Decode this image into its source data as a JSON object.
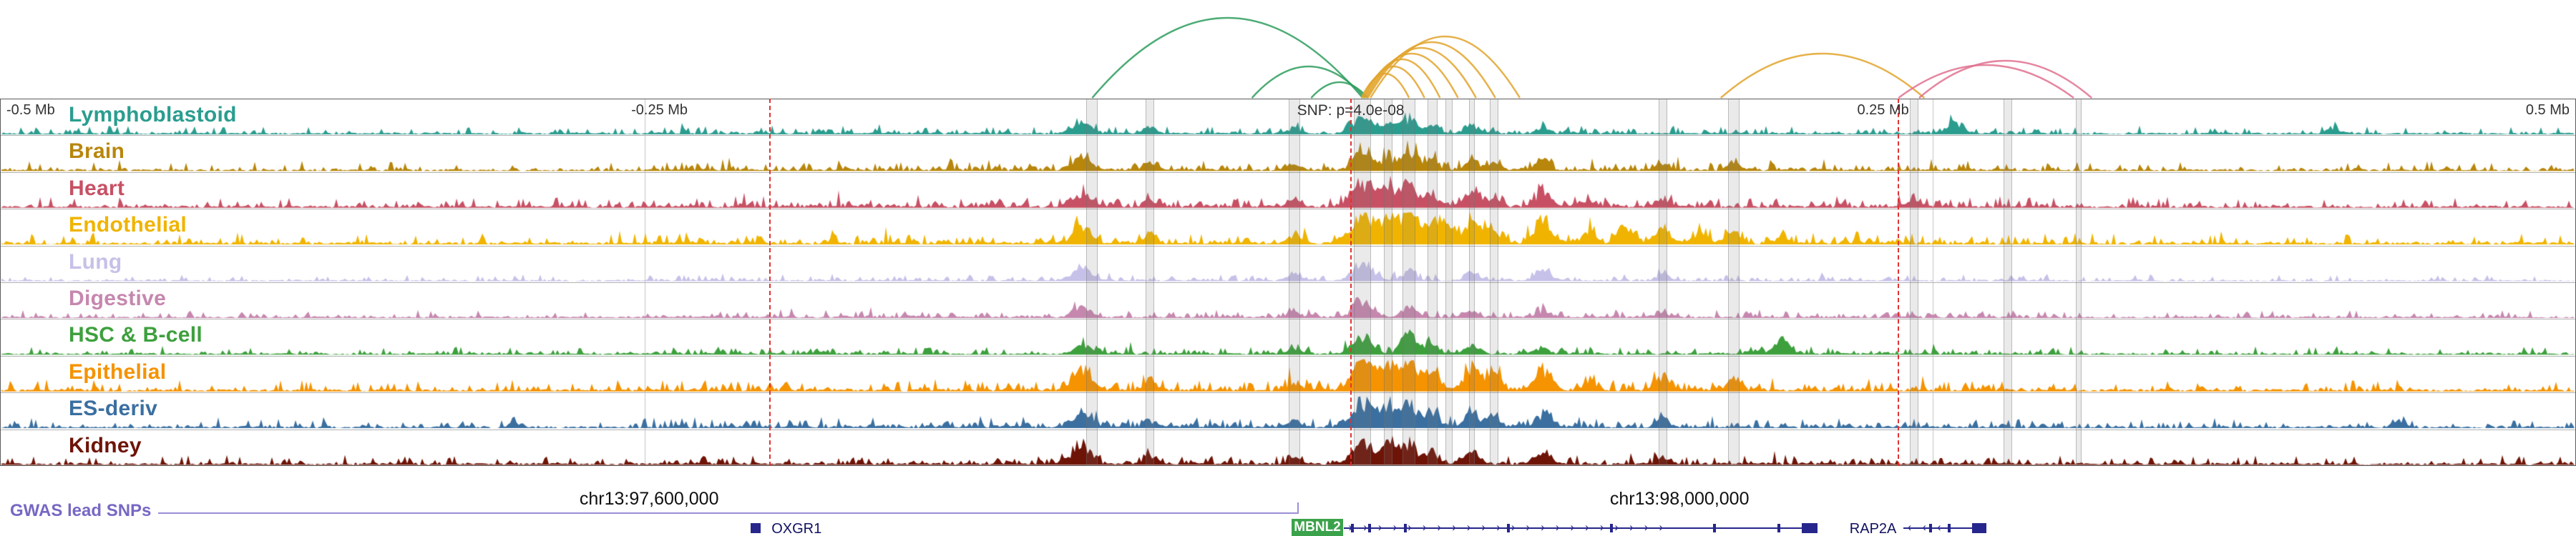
{
  "chart_data": {
    "type": "genome-browser-tracks",
    "description": "Tissue chromatin signal tracks with chromatin interaction arcs, GWAS lead SNP markers and gene annotations at the MBNL2 locus on chr13",
    "axis": {
      "ticks": [
        {
          "label": "-0.5 Mb",
          "pos": 0.0025,
          "anchor": "start"
        },
        {
          "label": "-0.25 Mb",
          "pos": 0.256,
          "anchor": "middle"
        },
        {
          "label": "0.25 Mb",
          "pos": 0.731,
          "anchor": "middle"
        },
        {
          "label": "0.5 Mb",
          "pos": 0.9975,
          "anchor": "end"
        }
      ],
      "gridlines": [
        0.25,
        0.75
      ],
      "snp": {
        "label": "SNP: p=4.0e-08",
        "pos": 0.5035
      }
    },
    "tracks": [
      {
        "label": "Lymphoblastoid",
        "color": "#2a9d8f",
        "noise": 1.0,
        "peaks": [
          [
            0.42,
            16,
            13
          ],
          [
            0.4465,
            8,
            9
          ],
          [
            0.5025,
            7,
            9
          ],
          [
            0.529,
            22,
            13
          ],
          [
            0.539,
            16,
            10
          ],
          [
            0.547,
            20,
            11
          ],
          [
            0.556,
            11,
            9
          ],
          [
            0.5715,
            12,
            10
          ],
          [
            0.599,
            8,
            9
          ],
          [
            0.759,
            15,
            11
          ],
          [
            0.906,
            7,
            9
          ]
        ]
      },
      {
        "label": "Brain",
        "color": "#b8860b",
        "noise": 1.2,
        "peaks": [
          [
            0.42,
            20,
            13
          ],
          [
            0.4465,
            12,
            9
          ],
          [
            0.5025,
            8,
            9
          ],
          [
            0.529,
            24,
            13
          ],
          [
            0.539,
            18,
            10
          ],
          [
            0.547,
            22,
            11
          ],
          [
            0.556,
            14,
            9
          ],
          [
            0.5715,
            13,
            10
          ],
          [
            0.58,
            10,
            9
          ],
          [
            0.599,
            12,
            10
          ],
          [
            0.6455,
            8,
            9
          ],
          [
            0.673,
            10,
            9
          ]
        ]
      },
      {
        "label": "Heart",
        "color": "#c75064",
        "noise": 1.3,
        "peaks": [
          [
            0.42,
            20,
            13
          ],
          [
            0.4465,
            10,
            9
          ],
          [
            0.5025,
            10,
            9
          ],
          [
            0.529,
            34,
            14
          ],
          [
            0.539,
            26,
            10
          ],
          [
            0.547,
            32,
            11
          ],
          [
            0.556,
            20,
            9
          ],
          [
            0.5715,
            22,
            10
          ],
          [
            0.58,
            14,
            9
          ],
          [
            0.599,
            22,
            11
          ],
          [
            0.617,
            12,
            9
          ],
          [
            0.6455,
            12,
            9
          ],
          [
            0.743,
            9,
            9
          ]
        ]
      },
      {
        "label": "Endothelial",
        "color": "#f0b400",
        "noise": 1.5,
        "peaks": [
          [
            0.42,
            22,
            13
          ],
          [
            0.4465,
            13,
            9
          ],
          [
            0.5025,
            12,
            9
          ],
          [
            0.529,
            42,
            15
          ],
          [
            0.539,
            36,
            11
          ],
          [
            0.547,
            44,
            12
          ],
          [
            0.556,
            30,
            10
          ],
          [
            0.5625,
            26,
            9
          ],
          [
            0.5715,
            34,
            11
          ],
          [
            0.58,
            24,
            9
          ],
          [
            0.599,
            36,
            11
          ],
          [
            0.617,
            18,
            9
          ],
          [
            0.632,
            22,
            10
          ],
          [
            0.6455,
            20,
            10
          ],
          [
            0.66,
            14,
            9
          ],
          [
            0.673,
            18,
            10
          ],
          [
            0.692,
            12,
            9
          ]
        ]
      },
      {
        "label": "Lung",
        "color": "#c6c1e8",
        "noise": 0.8,
        "peaks": [
          [
            0.42,
            18,
            13
          ],
          [
            0.5025,
            8,
            9
          ],
          [
            0.529,
            26,
            13
          ],
          [
            0.547,
            14,
            10
          ],
          [
            0.5715,
            10,
            9
          ],
          [
            0.599,
            16,
            10
          ],
          [
            0.6455,
            9,
            9
          ]
        ]
      },
      {
        "label": "Digestive",
        "color": "#c687ae",
        "noise": 0.9,
        "peaks": [
          [
            0.42,
            14,
            12
          ],
          [
            0.5025,
            7,
            9
          ],
          [
            0.529,
            22,
            13
          ],
          [
            0.547,
            14,
            10
          ],
          [
            0.5715,
            9,
            9
          ],
          [
            0.599,
            10,
            9
          ],
          [
            0.6455,
            7,
            9
          ]
        ]
      },
      {
        "label": "HSC & B-cell",
        "color": "#3da03d",
        "noise": 1.0,
        "peaks": [
          [
            0.42,
            11,
            12
          ],
          [
            0.5025,
            8,
            9
          ],
          [
            0.529,
            24,
            13
          ],
          [
            0.547,
            30,
            11
          ],
          [
            0.556,
            16,
            9
          ],
          [
            0.5715,
            14,
            10
          ],
          [
            0.599,
            10,
            9
          ],
          [
            0.692,
            18,
            11
          ]
        ]
      },
      {
        "label": "Epithelial",
        "color": "#f59300",
        "noise": 1.4,
        "peaks": [
          [
            0.42,
            28,
            13
          ],
          [
            0.4465,
            15,
            9
          ],
          [
            0.5025,
            11,
            9
          ],
          [
            0.529,
            42,
            15
          ],
          [
            0.539,
            34,
            11
          ],
          [
            0.547,
            40,
            12
          ],
          [
            0.556,
            28,
            10
          ],
          [
            0.5715,
            30,
            11
          ],
          [
            0.58,
            22,
            9
          ],
          [
            0.599,
            30,
            11
          ],
          [
            0.617,
            14,
            9
          ],
          [
            0.6455,
            20,
            10
          ],
          [
            0.673,
            16,
            10
          ]
        ]
      },
      {
        "label": "ES-deriv",
        "color": "#3a6fa0",
        "noise": 1.2,
        "peaks": [
          [
            0.2,
            7,
            9
          ],
          [
            0.42,
            18,
            13
          ],
          [
            0.4465,
            10,
            9
          ],
          [
            0.5025,
            9,
            9
          ],
          [
            0.529,
            36,
            15
          ],
          [
            0.539,
            28,
            11
          ],
          [
            0.547,
            34,
            11
          ],
          [
            0.556,
            22,
            10
          ],
          [
            0.5715,
            22,
            10
          ],
          [
            0.58,
            16,
            9
          ],
          [
            0.599,
            20,
            10
          ],
          [
            0.6455,
            12,
            9
          ],
          [
            0.931,
            9,
            9
          ]
        ]
      },
      {
        "label": "Kidney",
        "color": "#6e1407",
        "noise": 1.1,
        "peaks": [
          [
            0.42,
            24,
            13
          ],
          [
            0.4465,
            14,
            9
          ],
          [
            0.5025,
            9,
            9
          ],
          [
            0.529,
            32,
            14
          ],
          [
            0.539,
            24,
            10
          ],
          [
            0.547,
            28,
            11
          ],
          [
            0.556,
            18,
            9
          ],
          [
            0.5715,
            18,
            10
          ],
          [
            0.599,
            20,
            10
          ],
          [
            0.6455,
            9,
            9
          ]
        ]
      }
    ],
    "highlights": [
      [
        0.424,
        16
      ],
      [
        0.4465,
        12
      ],
      [
        0.5025,
        16
      ],
      [
        0.529,
        24
      ],
      [
        0.539,
        12
      ],
      [
        0.547,
        18
      ],
      [
        0.556,
        14
      ],
      [
        0.5625,
        10
      ],
      [
        0.5715,
        8
      ],
      [
        0.58,
        12
      ],
      [
        0.6455,
        12
      ],
      [
        0.673,
        16
      ],
      [
        0.743,
        12
      ],
      [
        0.7795,
        12
      ],
      [
        0.807,
        8
      ]
    ],
    "snp_lines": [
      0.2985,
      0.5242,
      0.7366
    ],
    "snp_line_color": "#e03232",
    "arc_colors": {
      "green": "#2e9e5e",
      "gold": "#e2a42d",
      "pink": "#e0718f"
    },
    "arcs": [
      {
        "x1": 0.424,
        "x2": 0.529,
        "h": 112,
        "c": "green"
      },
      {
        "x1": 0.486,
        "x2": 0.53,
        "h": 44,
        "c": "green"
      },
      {
        "x1": 0.509,
        "x2": 0.531,
        "h": 22,
        "c": "green"
      },
      {
        "x1": 0.5285,
        "x2": 0.547,
        "h": 34,
        "c": "gold"
      },
      {
        "x1": 0.529,
        "x2": 0.553,
        "h": 44,
        "c": "gold"
      },
      {
        "x1": 0.5295,
        "x2": 0.559,
        "h": 54,
        "c": "gold"
      },
      {
        "x1": 0.53,
        "x2": 0.566,
        "h": 62,
        "c": "gold"
      },
      {
        "x1": 0.5305,
        "x2": 0.573,
        "h": 70,
        "c": "gold"
      },
      {
        "x1": 0.531,
        "x2": 0.5805,
        "h": 78,
        "c": "gold"
      },
      {
        "x1": 0.532,
        "x2": 0.59,
        "h": 86,
        "c": "gold"
      },
      {
        "x1": 0.668,
        "x2": 0.747,
        "h": 62,
        "c": "gold"
      },
      {
        "x1": 0.737,
        "x2": 0.805,
        "h": 46,
        "c": "pink"
      },
      {
        "x1": 0.745,
        "x2": 0.812,
        "h": 52,
        "c": "pink"
      }
    ],
    "coords": [
      {
        "label": "chr13:97,600,000",
        "pos": 0.252
      },
      {
        "label": "chr13:98,000,000",
        "pos": 0.652
      }
    ],
    "gwas": {
      "label": "GWAS lead SNPs",
      "color": "#7668c4",
      "line_color": "#9a8fd8",
      "line_end": 0.5035
    },
    "gene_track": {
      "color": "#26268c",
      "label_color": "#101060",
      "genes": [
        {
          "name": "OXGR1",
          "kind": "compact",
          "box": 0.2915,
          "label_x": 0.2995
        },
        {
          "name": "MBNL2",
          "kind": "labeled-body",
          "label_box": [
            0.5013,
            0.5215
          ],
          "label_bg": "#3aa24a",
          "body": [
            0.5218,
            0.7055
          ],
          "strand": "+",
          "exons": [
            0.5245,
            0.531,
            0.545,
            0.585,
            0.625,
            0.665,
            0.69
          ],
          "end_box": [
            0.6995,
            0.7055
          ]
        },
        {
          "name": "RAP2A",
          "kind": "text-body",
          "label_x": 0.718,
          "body": [
            0.7388,
            0.7712
          ],
          "strand": "-",
          "exons": [
            0.749,
            0.756
          ],
          "end_box": [
            0.7655,
            0.7712
          ]
        }
      ]
    }
  }
}
